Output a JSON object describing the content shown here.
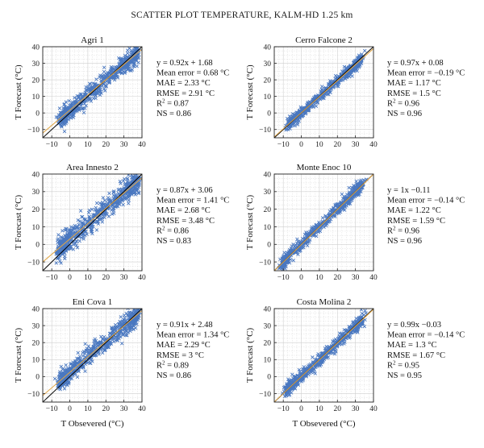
{
  "title": "SCATTER PLOT TEMPERATURE, KALM-HD 1.25 km",
  "colors": {
    "points": "#4a78c0",
    "fit_line": "#e0a545",
    "identity_line": "#000000",
    "grid": "#cfcfcf"
  },
  "chart_data": [
    {
      "type": "scatter",
      "title": "Agri 1",
      "xlabel": "",
      "ylabel": "T Forecast (°C)",
      "xlim": [
        -15,
        40
      ],
      "ylim": [
        -15,
        40
      ],
      "xticks": [
        "−10",
        "0",
        "10",
        "20",
        "30",
        "40"
      ],
      "yticks": [
        "−10",
        "0",
        "10",
        "20",
        "30",
        "40"
      ],
      "fit": {
        "slope": 0.92,
        "intercept": 1.68
      },
      "identity_line": true,
      "point_cloud": {
        "x_range": [
          -4,
          37
        ],
        "noise": 3.0
      },
      "stats": [
        "y = 0.92x + 1.68",
        "Mean error = 0.68 °C",
        "MAE = 2.33 °C",
        "RMSE = 2.91 °C",
        "R2 = 0.87",
        "NS = 0.86"
      ]
    },
    {
      "type": "scatter",
      "title": "Cerro Falcone 2",
      "xlabel": "",
      "ylabel": "T Forecast (°C)",
      "xlim": [
        -15,
        40
      ],
      "ylim": [
        -15,
        40
      ],
      "xticks": [
        "−10",
        "0",
        "10",
        "20",
        "30",
        "40"
      ],
      "yticks": [
        "−10",
        "0",
        "10",
        "20",
        "30",
        "40"
      ],
      "fit": {
        "slope": 0.97,
        "intercept": 0.08
      },
      "identity_line": true,
      "point_cloud": {
        "x_range": [
          -7,
          32
        ],
        "noise": 1.6
      },
      "stats": [
        "y = 0.97x + 0.08",
        "Mean error = −0.19 °C",
        "MAE = 1.17 °C",
        "RMSE = 1.5 °C",
        "R2 = 0.96",
        "NS = 0.96"
      ]
    },
    {
      "type": "scatter",
      "title": "Area Innesto 2",
      "xlabel": "",
      "ylabel": "T Forecast (°C)",
      "xlim": [
        -15,
        40
      ],
      "ylim": [
        -15,
        40
      ],
      "xticks": [
        "−10",
        "0",
        "10",
        "20",
        "30",
        "40"
      ],
      "yticks": [
        "−10",
        "0",
        "10",
        "20",
        "30",
        "40"
      ],
      "fit": {
        "slope": 0.87,
        "intercept": 3.06
      },
      "identity_line": true,
      "point_cloud": {
        "x_range": [
          -6,
          37
        ],
        "noise": 3.3
      },
      "stats": [
        "y = 0.87x + 3.06",
        "Mean error = 1.41 °C",
        "MAE = 2.68 °C",
        "RMSE = 3.48 °C",
        "R2 = 0.86",
        "NS = 0.83"
      ]
    },
    {
      "type": "scatter",
      "title": "Monte Enoc 10",
      "xlabel": "",
      "ylabel": "T Forecast (°C)",
      "xlim": [
        -15,
        40
      ],
      "ylim": [
        -15,
        40
      ],
      "xticks": [
        "−10",
        "0",
        "10",
        "20",
        "30",
        "40"
      ],
      "yticks": [
        "−10",
        "0",
        "10",
        "20",
        "30",
        "40"
      ],
      "fit": {
        "slope": 1.0,
        "intercept": -0.11
      },
      "identity_line": true,
      "point_cloud": {
        "x_range": [
          -10,
          33
        ],
        "noise": 1.8
      },
      "stats": [
        "y = 1x −0.11",
        "Mean error = −0.14 °C",
        "MAE = 1.22 °C",
        "RMSE = 1.59 °C",
        "R2 = 0.96",
        "NS = 0.96"
      ]
    },
    {
      "type": "scatter",
      "title": "Eni Cova 1",
      "xlabel": "T Obsevered (°C)",
      "ylabel": "T Forecast (°C)",
      "xlim": [
        -15,
        40
      ],
      "ylim": [
        -15,
        40
      ],
      "xticks": [
        "−10",
        "0",
        "10",
        "20",
        "30",
        "40"
      ],
      "yticks": [
        "−10",
        "0",
        "10",
        "20",
        "30",
        "40"
      ],
      "fit": {
        "slope": 0.91,
        "intercept": 2.48
      },
      "identity_line": true,
      "point_cloud": {
        "x_range": [
          -5,
          37
        ],
        "noise": 2.8
      },
      "stats": [
        "y = 0.91x + 2.48",
        "Mean error = 1.34 °C",
        "MAE = 2.29 °C",
        "RMSE = 3 °C",
        "R2 = 0.89",
        "NS = 0.86"
      ]
    },
    {
      "type": "scatter",
      "title": "Costa Molina 2",
      "xlabel": "T Obsevered (°C)",
      "ylabel": "T Forecast (°C)",
      "xlim": [
        -15,
        40
      ],
      "ylim": [
        -15,
        40
      ],
      "xticks": [
        "−10",
        "0",
        "10",
        "20",
        "30",
        "40"
      ],
      "yticks": [
        "−10",
        "0",
        "10",
        "20",
        "30",
        "40"
      ],
      "fit": {
        "slope": 0.99,
        "intercept": -0.03
      },
      "identity_line": true,
      "point_cloud": {
        "x_range": [
          -8,
          33
        ],
        "noise": 1.9
      },
      "stats": [
        "y = 0.99x −0.03",
        "Mean error = −0.14 °C",
        "MAE = 1.3 °C",
        "RMSE = 1.67 °C",
        "R2 = 0.95",
        "NS = 0.95"
      ]
    }
  ]
}
